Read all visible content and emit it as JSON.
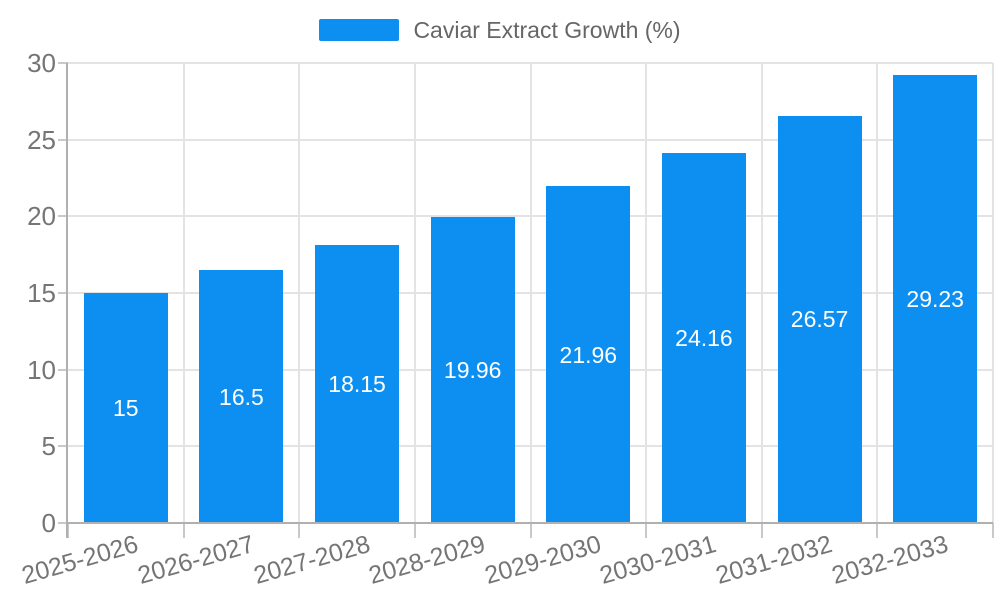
{
  "legend": {
    "items": [
      {
        "label": "Caviar Extract Growth (%)",
        "color": "#0d8ff2"
      }
    ]
  },
  "chart_data": {
    "type": "bar",
    "title": "Caviar Extract Growth (%)",
    "categories": [
      "2025-2026",
      "2026-2027",
      "2027-2028",
      "2028-2029",
      "2029-2030",
      "2030-2031",
      "2031-2032",
      "2032-2033"
    ],
    "series": [
      {
        "name": "Caviar Extract Growth (%)",
        "values": [
          15,
          16.5,
          18.15,
          19.96,
          21.96,
          24.16,
          26.57,
          29.23
        ],
        "color": "#0d8ff2"
      }
    ],
    "xlabel": "",
    "ylabel": "",
    "ylim": [
      0,
      30
    ],
    "y_ticks": [
      0,
      5,
      10,
      15,
      20,
      25,
      30
    ],
    "grid": true,
    "legend_position": "top-center",
    "value_labels_inside_bars": true,
    "x_label_rotation_deg": -16,
    "styles": {
      "bar_color": "#0d8ff2",
      "value_label_color": "#ffffff",
      "grid_color": "#e3e3e3",
      "axis_color": "#b0b0b0",
      "tick_color": "#c9c9c9",
      "tick_label_color": "#757575",
      "legend_text_color": "#666666",
      "background": "#ffffff"
    }
  }
}
